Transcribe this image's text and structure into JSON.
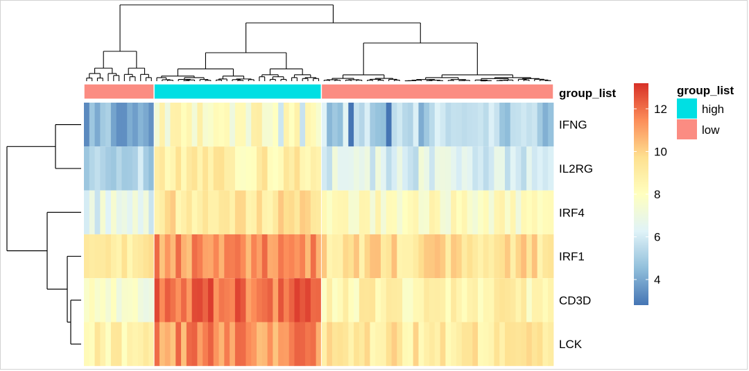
{
  "chart_data": {
    "type": "heatmap",
    "rows": [
      "IFNG",
      "IL2RG",
      "IRF4",
      "IRF1",
      "CD3D",
      "LCK"
    ],
    "annotation": {
      "name": "group_list",
      "column_groups": [
        {
          "group": "low",
          "count": 13
        },
        {
          "group": "high",
          "count": 31
        },
        {
          "group": "low",
          "count": 43
        }
      ]
    },
    "row_means": {
      "low_left": [
        4.3,
        5.2,
        6.6,
        8.8,
        7.6,
        8.6
      ],
      "high": [
        8.0,
        8.8,
        9.4,
        11.3,
        12.0,
        11.3
      ],
      "low_right": [
        5.5,
        6.3,
        8.0,
        9.5,
        8.6,
        9.2
      ]
    },
    "color_scale": {
      "min": 2.8,
      "max": 13.2,
      "ticks": [
        4,
        6,
        8,
        10,
        12
      ],
      "stops": [
        "#4575b4",
        "#91bfdb",
        "#e0f3f8",
        "#ffffbf",
        "#fee090",
        "#fc8d59",
        "#d73027"
      ]
    },
    "legend": {
      "title": "group_list",
      "entries": [
        {
          "label": "high",
          "color": "#00dfe3"
        },
        {
          "label": "low",
          "color": "#fb8c82"
        }
      ]
    },
    "row_dendrogram": true,
    "column_dendrogram": true
  }
}
